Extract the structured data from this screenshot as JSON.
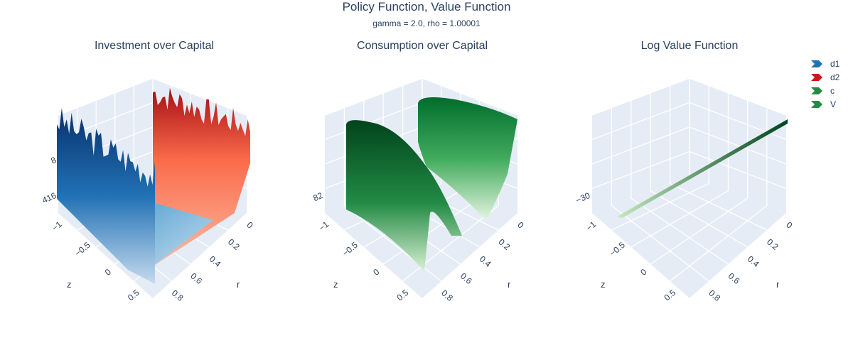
{
  "chart_data": {
    "type": "surface",
    "title": "Policy Function, Value Function",
    "subtitle": "gamma = 2.0, rho = 1.00001",
    "panels": [
      {
        "title": "Investment over Capital",
        "x_label": "r",
        "y_label": "z",
        "x_ticks": [
          "0",
          "0.2",
          "0.4",
          "0.6",
          "0.8"
        ],
        "y_ticks": [
          "−1",
          "−0.5",
          "0",
          "0.5"
        ],
        "z_ticks": [
          "416",
          "8"
        ],
        "series": [
          "d1",
          "d2"
        ]
      },
      {
        "title": "Consumption over Capital",
        "x_label": "r",
        "y_label": "z",
        "x_ticks": [
          "0",
          "0.2",
          "0.4",
          "0.6",
          "0.8"
        ],
        "y_ticks": [
          "−1",
          "−0.5",
          "0",
          "0.5"
        ],
        "z_ticks": [
          "82"
        ],
        "series": [
          "c"
        ]
      },
      {
        "title": "Log Value Function",
        "x_label": "r",
        "y_label": "z",
        "x_ticks": [
          "0",
          "0.2",
          "0.4",
          "0.6",
          "0.8"
        ],
        "y_ticks": [
          "−1",
          "−0.5",
          "0",
          "0.5"
        ],
        "z_ticks": [
          "−30"
        ],
        "series": [
          "V"
        ]
      }
    ],
    "legend": {
      "position": "top-right",
      "items": [
        {
          "name": "d1",
          "colors": [
            "#08306b",
            "#6baed6",
            "#c6dbef"
          ]
        },
        {
          "name": "d2",
          "colors": [
            "#67000d",
            "#ef3b2c",
            "#fcbba1"
          ]
        },
        {
          "name": "c",
          "colors": [
            "#00441b",
            "#41ab5d",
            "#c7e9c0"
          ]
        },
        {
          "name": "V",
          "colors": [
            "#00441b",
            "#41ab5d",
            "#c7e9c0"
          ]
        }
      ]
    },
    "colors": {
      "scene_bg": "#e5ecf6",
      "grid": "#ffffff",
      "text": "#2a3f5f"
    }
  }
}
